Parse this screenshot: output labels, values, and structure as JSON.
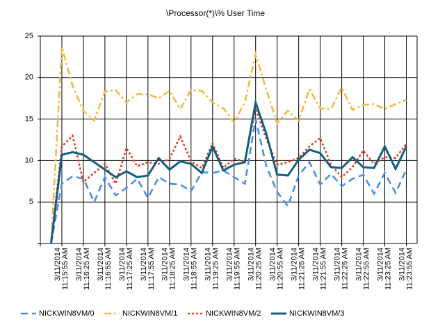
{
  "chart_data": {
    "type": "line",
    "title": "\\Processor(*)\\% User Time",
    "categories": [
      null,
      [
        "3/11/2014",
        "11:15:55 AM"
      ],
      null,
      [
        "3/11/2014",
        "11:16:25 AM"
      ],
      null,
      [
        "3/11/2014",
        "11:16:55 AM"
      ],
      null,
      [
        "3/11/2014",
        "11:17:25 AM"
      ],
      null,
      [
        "3/11/2014",
        "11:17:55 AM"
      ],
      null,
      [
        "3/11/2014",
        "11:18:25 AM"
      ],
      null,
      [
        "3/11/2014",
        "11:18:55 AM"
      ],
      null,
      [
        "3/11/2014",
        "11:19:25 AM"
      ],
      null,
      [
        "3/11/2014",
        "11:19:55 AM"
      ],
      null,
      [
        "3/11/2014",
        "11:20:25 AM"
      ],
      null,
      [
        "3/11/2014",
        "11:20:55 AM"
      ],
      null,
      [
        "3/11/2014",
        "11:21:25 AM"
      ],
      null,
      [
        "3/11/2014",
        "11:21:55 AM"
      ],
      null,
      [
        "3/11/2014",
        "11:22:25 AM"
      ],
      null,
      [
        "3/11/2014",
        "11:22:55 AM"
      ],
      null,
      [
        "3/11/2014",
        "11:23:25 AM"
      ],
      null,
      [
        "3/11/2014",
        "11:23:55 AM"
      ]
    ],
    "series": [
      {
        "name": "NICKWIN8VM/0",
        "color": "#4a8fe7",
        "dash": "10,6",
        "values": [
          0,
          7.2,
          8.1,
          7.8,
          5.0,
          8.0,
          5.8,
          6.7,
          7.8,
          5.5,
          8.0,
          7.2,
          7.1,
          6.3,
          8.6,
          8.5,
          8.8,
          8.0,
          7.2,
          15.0,
          9.3,
          6.2,
          4.5,
          8.2,
          9.8,
          7.1,
          8.4,
          6.9,
          7.8,
          8.3,
          6.0,
          8.5,
          6.1,
          8.9
        ]
      },
      {
        "name": "NICKWIN8VM/1",
        "color": "#f5b942",
        "dash": "10,4,3,4",
        "values": [
          0,
          23.7,
          19.0,
          16.0,
          14.8,
          18.3,
          18.5,
          17.0,
          18.0,
          18.0,
          17.5,
          18.4,
          16.2,
          18.5,
          18.4,
          17.0,
          16.3,
          14.6,
          17.0,
          22.8,
          18.5,
          14.5,
          16.0,
          14.8,
          18.6,
          16.3,
          16.2,
          18.8,
          16.1,
          16.7,
          16.8,
          16.2,
          16.8,
          17.3
        ]
      },
      {
        "name": "NICKWIN8VM/2",
        "color": "#d9411e",
        "dash": "3,3",
        "values": [
          0,
          11.7,
          13.0,
          7.4,
          8.5,
          9.6,
          7.2,
          11.5,
          9.3,
          9.8,
          9.6,
          10.2,
          12.9,
          9.9,
          9.1,
          12.1,
          9.1,
          10.2,
          9.9,
          16.3,
          12.6,
          9.5,
          9.8,
          10.3,
          11.7,
          12.7,
          9.5,
          8.0,
          9.2,
          11.2,
          9.6,
          10.4,
          10.3,
          12.0
        ]
      },
      {
        "name": "NICKWIN8VM/3",
        "color": "#115e7e",
        "dash": "",
        "values": [
          0,
          10.7,
          11.0,
          10.7,
          9.8,
          8.9,
          8.0,
          8.7,
          8.0,
          8.2,
          10.3,
          8.9,
          9.9,
          9.6,
          8.5,
          11.7,
          8.8,
          9.5,
          9.8,
          17.0,
          13.2,
          8.3,
          8.2,
          10.1,
          11.3,
          10.9,
          9.2,
          9.1,
          10.4,
          9.2,
          9.1,
          11.7,
          9.0,
          11.7
        ]
      }
    ],
    "ylim": [
      0,
      25
    ],
    "yticks": [
      5,
      10,
      15,
      20,
      25
    ],
    "grid": true,
    "legend": "bottom"
  }
}
